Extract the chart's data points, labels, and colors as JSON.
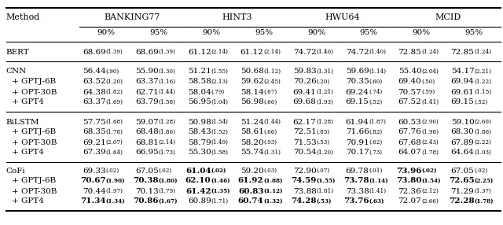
{
  "col_groups": [
    "BANKING77",
    "HINT3",
    "HWU64",
    "MCID"
  ],
  "sub_cols": [
    "90%",
    "95%"
  ],
  "row_groups": [
    {
      "rows": [
        {
          "method": "BERT",
          "vals": [
            "68.69(1.39)",
            "68.69(1.39)",
            "61.12(2.14)",
            "61.12(2.14)",
            "74.72(1.40)",
            "74.72(1.40)",
            "72.85(1.24)",
            "72.85(1.24)"
          ],
          "bold": [
            false,
            false,
            false,
            false,
            false,
            false,
            false,
            false
          ]
        }
      ]
    },
    {
      "rows": [
        {
          "method": "CNN",
          "vals": [
            "56.44(.90)",
            "55.90(1.30)",
            "51.21(1.55)",
            "50.68(1.12)",
            "59.83(1.31)",
            "59.69(1.14)",
            "55.40(2.04)",
            "54.17(2.21)"
          ],
          "bold": [
            false,
            false,
            false,
            false,
            false,
            false,
            false,
            false
          ]
        },
        {
          "method": "+ GPTJ-6B",
          "vals": [
            "63.52(1.20)",
            "63.37(1.16)",
            "58.58(2.13)",
            "59.62(2.45)",
            "70.26(.20)",
            "70.35(.60)",
            "69.40(.50)",
            "69.94(1.22)"
          ],
          "bold": [
            false,
            false,
            false,
            false,
            false,
            false,
            false,
            false
          ]
        },
        {
          "method": "+ OPT-30B",
          "vals": [
            "64.38(1.82)",
            "62.71(1.44)",
            "58.04(.79)",
            "58.14(.67)",
            "69.41(1.21)",
            "69.24(.74)",
            "70.57(.59)",
            "69.61(1.15)"
          ],
          "bold": [
            false,
            false,
            false,
            false,
            false,
            false,
            false,
            false
          ]
        },
        {
          "method": "+ GPT4",
          "vals": [
            "63.37(1.69)",
            "63.79(1.58)",
            "56.95(1.04)",
            "56.98(.66)",
            "69.68(1.93)",
            "69.15(.52)",
            "67.52(1.41)",
            "69.15(.52)"
          ],
          "bold": [
            false,
            false,
            false,
            false,
            false,
            false,
            false,
            false
          ]
        }
      ]
    },
    {
      "rows": [
        {
          "method": "BiLSTM",
          "vals": [
            "57.75(1.68)",
            "59.07(1.28)",
            "50.98(1.54)",
            "51.24(1.44)",
            "62.17(1.28)",
            "61.94(1.87)",
            "60.53(2.90)",
            "59.10(2.60)"
          ],
          "bold": [
            false,
            false,
            false,
            false,
            false,
            false,
            false,
            false
          ]
        },
        {
          "method": "+ GPTJ-6B",
          "vals": [
            "68.35(1.78)",
            "68.48(1.86)",
            "58.43(1.52)",
            "58.61(.66)",
            "72.51(.85)",
            "71.66(.82)",
            "67.76(1.98)",
            "68.30(1.86)"
          ],
          "bold": [
            false,
            false,
            false,
            false,
            false,
            false,
            false,
            false
          ]
        },
        {
          "method": "+ OPT-30B",
          "vals": [
            "69.21(2.07)",
            "68.81(2.14)",
            "58.79(1.49)",
            "58.20(.93)",
            "71.53(.53)",
            "70.91(.62)",
            "67.68(2.43)",
            "67.89(2.22)"
          ],
          "bold": [
            false,
            false,
            false,
            false,
            false,
            false,
            false,
            false
          ]
        },
        {
          "method": "+ GPT4",
          "vals": [
            "67.39(1.64)",
            "66.95(1.73)",
            "55.30(1.58)",
            "55.74(1.31)",
            "70.54(1.20)",
            "70.17(.73)",
            "64.07(1.78)",
            "64.64(1.03)"
          ],
          "bold": [
            false,
            false,
            false,
            false,
            false,
            false,
            false,
            false
          ]
        }
      ]
    },
    {
      "rows": [
        {
          "method": "CoFi",
          "vals": [
            "69.33(.02)",
            "67.05(.02)",
            "61.04(.02)",
            "59.20(.03)",
            "72.90(.07)",
            "69.78(.01)",
            "73.96(.02)",
            "67.05(.02)"
          ],
          "bold": [
            false,
            false,
            true,
            false,
            false,
            false,
            true,
            false
          ]
        },
        {
          "method": "+ GPTJ-6B",
          "vals": [
            "70.67(1.90)",
            "70.38(1.80)",
            "62.10(1.46)",
            "61.92(1.88)",
            "74.59(1.55)",
            "73.78(1.14)",
            "73.80(1.54)",
            "72.65(2.25)"
          ],
          "bold": [
            true,
            true,
            true,
            true,
            true,
            true,
            true,
            true
          ]
        },
        {
          "method": "+ OPT-30B",
          "vals": [
            "70.44(1.97)",
            "70.13(1.79)",
            "61.42(1.35)",
            "60.83(1.12)",
            "73.88(1.81)",
            "73.38(1.41)",
            "72.36(2.12)",
            "71.29(1.37)"
          ],
          "bold": [
            false,
            false,
            true,
            true,
            false,
            false,
            false,
            false
          ]
        },
        {
          "method": "+ GPT4",
          "vals": [
            "71.34(1.34)",
            "70.86(1.67)",
            "60.89(1.71)",
            "60.74(1.32)",
            "74.28(.53)",
            "73.76(.63)",
            "72.07(2.66)",
            "72.28(1.78)"
          ],
          "bold": [
            true,
            true,
            false,
            true,
            true,
            true,
            false,
            true
          ]
        }
      ]
    }
  ],
  "fs_main": 7.5,
  "fs_sub": 5.2,
  "fs_header": 8.0,
  "fs_col": 7.5,
  "lw_thick": 1.5,
  "lw_thin": 0.8
}
